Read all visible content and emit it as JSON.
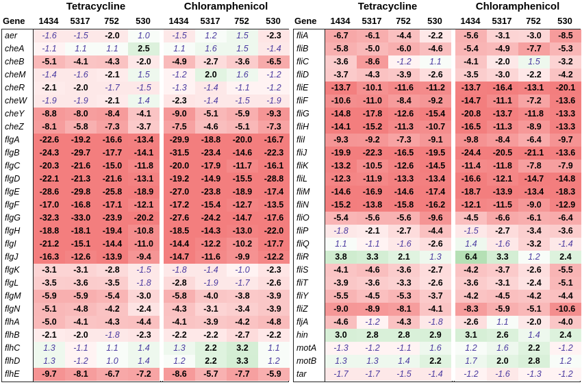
{
  "chart_data": {
    "type": "table",
    "groups": [
      "Tetracycline",
      "Chloramphenicol"
    ],
    "columns": [
      "1434",
      "5317",
      "752",
      "530"
    ],
    "gene_header": "Gene",
    "panels": [
      {
        "rows": [
          {
            "gene": "aer",
            "tet": [
              "-1.6",
              "-1.5",
              "-2.0",
              "1.0"
            ],
            "chl": [
              "-1.5",
              "1.2",
              "1.5",
              "-2.3"
            ]
          },
          {
            "gene": "cheA",
            "tet": [
              "-1.1",
              "1.1",
              "1.1",
              "2.5"
            ],
            "chl": [
              "1.1",
              "1.6",
              "1.5",
              "-1.4"
            ]
          },
          {
            "gene": "cheB",
            "tet": [
              "-5.1",
              "-4.1",
              "-4.3",
              "-2.0"
            ],
            "chl": [
              "-4.9",
              "-2.7",
              "-3.6",
              "-6.5"
            ]
          },
          {
            "gene": "cheM",
            "tet": [
              "-1.4",
              "-1.6",
              "-2.1",
              "1.5"
            ],
            "chl": [
              "-1.2",
              "2.0",
              "1.6",
              "-1.2"
            ]
          },
          {
            "gene": "cheR",
            "tet": [
              "-2.1",
              "-2.0",
              "-1.7",
              "-1.5"
            ],
            "chl": [
              "-1.3",
              "-1.4",
              "-1.1",
              "-1.2"
            ]
          },
          {
            "gene": "cheW",
            "tet": [
              "-1.9",
              "-1.9",
              "-2.1",
              "1.4"
            ],
            "chl": [
              "-2.3",
              "-1.4",
              "-1.5",
              "-1.9"
            ]
          },
          {
            "gene": "cheY",
            "tet": [
              "-8.8",
              "-8.0",
              "-8.4",
              "-4.1"
            ],
            "chl": [
              "-9.0",
              "-5.1",
              "-5.9",
              "-9.3"
            ]
          },
          {
            "gene": "cheZ",
            "tet": [
              "-8.1",
              "-5.8",
              "-7.3",
              "-3.7"
            ],
            "chl": [
              "-7.5",
              "-4.6",
              "-5.1",
              "-7.3"
            ]
          },
          {
            "gene": "flgA",
            "tet": [
              "-22.6",
              "-19.2",
              "-16.6",
              "-13.4"
            ],
            "chl": [
              "-29.9",
              "-18.8",
              "-20.0",
              "-16.7"
            ]
          },
          {
            "gene": "flgB",
            "tet": [
              "-24.3",
              "-29.7",
              "-17.7",
              "-14.1"
            ],
            "chl": [
              "-31.5",
              "-23.4",
              "-14.6",
              "-22.3"
            ]
          },
          {
            "gene": "flgC",
            "tet": [
              "-20.3",
              "-21.6",
              "-15.0",
              "-11.8"
            ],
            "chl": [
              "-20.0",
              "-17.9",
              "-11.7",
              "-16.1"
            ]
          },
          {
            "gene": "flgD",
            "tet": [
              "-22.1",
              "-21.3",
              "-21.6",
              "-13.1"
            ],
            "chl": [
              "-19.2",
              "-14.9",
              "-15.5",
              "-28.8"
            ]
          },
          {
            "gene": "flgE",
            "tet": [
              "-28.6",
              "-29.8",
              "-25.8",
              "-18.9"
            ],
            "chl": [
              "-27.0",
              "-23.8",
              "-18.9",
              "-17.4"
            ]
          },
          {
            "gene": "flgF",
            "tet": [
              "-17.0",
              "-16.8",
              "-17.1",
              "-12.1"
            ],
            "chl": [
              "-17.2",
              "-15.4",
              "-12.7",
              "-13.5"
            ]
          },
          {
            "gene": "flgG",
            "tet": [
              "-32.3",
              "-33.0",
              "-23.9",
              "-20.2"
            ],
            "chl": [
              "-27.6",
              "-24.2",
              "-14.7",
              "-17.6"
            ]
          },
          {
            "gene": "flgH",
            "tet": [
              "-18.8",
              "-18.1",
              "-19.4",
              "-10.8"
            ],
            "chl": [
              "-18.5",
              "-14.3",
              "-13.0",
              "-22.0"
            ]
          },
          {
            "gene": "flgI",
            "tet": [
              "-21.2",
              "-15.1",
              "-14.4",
              "-11.0"
            ],
            "chl": [
              "-14.4",
              "-12.2",
              "-10.2",
              "-17.7"
            ]
          },
          {
            "gene": "flgJ",
            "tet": [
              "-16.3",
              "-12.6",
              "-13.9",
              "-9.4"
            ],
            "chl": [
              "-14.7",
              "-11.6",
              "-9.9",
              "-12.2"
            ]
          },
          {
            "gene": "flgK",
            "tet": [
              "-3.1",
              "-3.1",
              "-2.8",
              "-1.5"
            ],
            "chl": [
              "-1.8",
              "-1.4",
              "-1.0",
              "-2.3"
            ]
          },
          {
            "gene": "flgL",
            "tet": [
              "-3.5",
              "-3.6",
              "-3.5",
              "-1.8"
            ],
            "chl": [
              "-2.8",
              "-1.9",
              "-1.7",
              "-2.6"
            ]
          },
          {
            "gene": "flgM",
            "tet": [
              "-5.9",
              "-5.9",
              "-5.4",
              "-3.0"
            ],
            "chl": [
              "-5.8",
              "-4.0",
              "-3.8",
              "-3.9"
            ]
          },
          {
            "gene": "flgN",
            "tet": [
              "-5.1",
              "-4.8",
              "-4.2",
              "-2.4"
            ],
            "chl": [
              "-4.3",
              "-3.1",
              "-3.4",
              "-3.9"
            ]
          },
          {
            "gene": "flhA",
            "tet": [
              "-5.0",
              "-4.1",
              "-4.3",
              "-4.4"
            ],
            "chl": [
              "-4.1",
              "-3.9",
              "-4.2",
              "-4.8"
            ]
          },
          {
            "gene": "flhB",
            "tet": [
              "-2.1",
              "-2.0",
              "-1.8",
              "-2.3"
            ],
            "chl": [
              "-2.2",
              "-2.2",
              "-2.7",
              "-2.2"
            ]
          },
          {
            "gene": "flhC",
            "tet": [
              "1.3",
              "-1.1",
              "1.1",
              "1.4"
            ],
            "chl": [
              "1.3",
              "2.2",
              "3.2",
              "1.1"
            ]
          },
          {
            "gene": "flhD",
            "tet": [
              "1.3",
              "-1.2",
              "1.0",
              "1.4"
            ],
            "chl": [
              "1.2",
              "2.2",
              "3.3",
              "1.2"
            ]
          },
          {
            "gene": "flhE",
            "tet": [
              "-9.7",
              "-8.1",
              "-6.7",
              "-7.2"
            ],
            "chl": [
              "-8.6",
              "-5.7",
              "-7.7",
              "-5.9"
            ]
          }
        ]
      },
      {
        "rows": [
          {
            "gene": "fliA",
            "tet": [
              "-6.7",
              "-6.1",
              "-4.4",
              "-2.2"
            ],
            "chl": [
              "-5.6",
              "-3.1",
              "-3.0",
              "-8.5"
            ]
          },
          {
            "gene": "fliB",
            "tet": [
              "-5.8",
              "-5.0",
              "-6.0",
              "-4.6"
            ],
            "chl": [
              "-5.4",
              "-4.9",
              "-7.7",
              "-5.3"
            ]
          },
          {
            "gene": "fliC",
            "tet": [
              "-3.6",
              "-8.6",
              "-1.2",
              "1.1"
            ],
            "chl": [
              "-4.1",
              "-2.0",
              "1.5",
              "-3.2"
            ]
          },
          {
            "gene": "fliD",
            "tet": [
              "-3.7",
              "-4.3",
              "-3.9",
              "-2.6"
            ],
            "chl": [
              "-3.5",
              "-3.0",
              "-2.2",
              "-4.2"
            ]
          },
          {
            "gene": "fliE",
            "tet": [
              "-13.7",
              "-10.1",
              "-11.6",
              "-11.2"
            ],
            "chl": [
              "-13.7",
              "-16.4",
              "-13.1",
              "-20.1"
            ]
          },
          {
            "gene": "fliF",
            "tet": [
              "-10.6",
              "-11.0",
              "-8.4",
              "-9.2"
            ],
            "chl": [
              "-14.7",
              "-11.1",
              "-7.2",
              "-13.6"
            ]
          },
          {
            "gene": "fliG",
            "tet": [
              "-14.8",
              "-17.8",
              "-12.6",
              "-15.4"
            ],
            "chl": [
              "-20.8",
              "-13.7",
              "-11.8",
              "-13.3"
            ]
          },
          {
            "gene": "fliH",
            "tet": [
              "-14.1",
              "-15.2",
              "-11.3",
              "-10.7"
            ],
            "chl": [
              "-16.5",
              "-11.3",
              "-8.9",
              "-13.3"
            ]
          },
          {
            "gene": "fliI",
            "tet": [
              "-9.3",
              "-9.2",
              "-7.3",
              "-9.1"
            ],
            "chl": [
              "-9.8",
              "-8.4",
              "-6.4",
              "-9.7"
            ]
          },
          {
            "gene": "fliJ",
            "tet": [
              "-19.9",
              "-22.3",
              "-16.5",
              "-19.5"
            ],
            "chl": [
              "-24.4",
              "-20.5",
              "-21.1",
              "-13.6"
            ]
          },
          {
            "gene": "fliK",
            "tet": [
              "-13.2",
              "-10.5",
              "-12.6",
              "-14.5"
            ],
            "chl": [
              "-11.4",
              "-11.8",
              "-7.8",
              "-7.9"
            ]
          },
          {
            "gene": "fliL",
            "tet": [
              "-12.3",
              "-11.9",
              "-13.3",
              "-13.4"
            ],
            "chl": [
              "-16.6",
              "-12.1",
              "-14.7",
              "-14.8"
            ]
          },
          {
            "gene": "fliM",
            "tet": [
              "-14.6",
              "-16.9",
              "-14.6",
              "-17.4"
            ],
            "chl": [
              "-18.7",
              "-13.9",
              "-13.4",
              "-18.3"
            ]
          },
          {
            "gene": "fliN",
            "tet": [
              "-15.2",
              "-13.8",
              "-15.8",
              "-16.2"
            ],
            "chl": [
              "-12.1",
              "-11.5",
              "-9.0",
              "-12.9"
            ]
          },
          {
            "gene": "fliO",
            "tet": [
              "-5.4",
              "-5.6",
              "-5.6",
              "-9.6"
            ],
            "chl": [
              "-4.5",
              "-6.6",
              "-6.1",
              "-6.4"
            ]
          },
          {
            "gene": "fliP",
            "tet": [
              "-1.8",
              "-2.1",
              "-2.7",
              "-4.4"
            ],
            "chl": [
              "-1.5",
              "-2.7",
              "-3.4",
              "-3.6"
            ]
          },
          {
            "gene": "fliQ",
            "tet": [
              "1.1",
              "-1.1",
              "-1.6",
              "-2.6"
            ],
            "chl": [
              "1.4",
              "-1.6",
              "-3.2",
              "-1.4"
            ]
          },
          {
            "gene": "fliR",
            "tet": [
              "3.8",
              "3.3",
              "2.1",
              "1.3"
            ],
            "chl": [
              "6.4",
              "3.3",
              "1.2",
              "2.4"
            ]
          },
          {
            "gene": "fliS",
            "tet": [
              "-4.1",
              "-4.6",
              "-3.6",
              "-2.7"
            ],
            "chl": [
              "-4.2",
              "-3.7",
              "-2.6",
              "-5.5"
            ]
          },
          {
            "gene": "fliT",
            "tet": [
              "-3.9",
              "-3.6",
              "-3.3",
              "-2.6"
            ],
            "chl": [
              "-3.6",
              "-3.1",
              "-2.4",
              "-5.1"
            ]
          },
          {
            "gene": "fliY",
            "tet": [
              "-5.5",
              "-4.5",
              "-5.3",
              "-3.7"
            ],
            "chl": [
              "-4.2",
              "-4.5",
              "-4.2",
              "-4.4"
            ]
          },
          {
            "gene": "fliZ",
            "tet": [
              "-9.0",
              "-8.9",
              "-8.1",
              "-4.1"
            ],
            "chl": [
              "-8.3",
              "-5.9",
              "-5.1",
              "-10.6"
            ]
          },
          {
            "gene": "fljA",
            "tet": [
              "-4.6",
              "-1.2",
              "-4.3",
              "-1.8"
            ],
            "chl": [
              "-2.6",
              "1.1",
              "-2.0",
              "-4.0"
            ]
          },
          {
            "gene": "hin",
            "tet": [
              "3.0",
              "2.8",
              "2.8",
              "2.9"
            ],
            "chl": [
              "3.1",
              "2.6",
              "1.4",
              "2.4"
            ]
          },
          {
            "gene": "motA",
            "tet": [
              "-1.3",
              "-1.2",
              "-1.1",
              "1.6"
            ],
            "chl": [
              "1.2",
              "1.6",
              "2.2",
              "-1.2"
            ]
          },
          {
            "gene": "motB",
            "tet": [
              "1.3",
              "1.3",
              "1.4",
              "2.2"
            ],
            "chl": [
              "1.7",
              "2.0",
              "2.8",
              "1.2"
            ]
          },
          {
            "gene": "tar",
            "tet": [
              "-1.7",
              "-1.7",
              "-1.5",
              "-1.4"
            ],
            "chl": [
              "-1.2",
              "-1.6",
              "-1.3",
              "-1.2"
            ]
          }
        ]
      }
    ]
  }
}
